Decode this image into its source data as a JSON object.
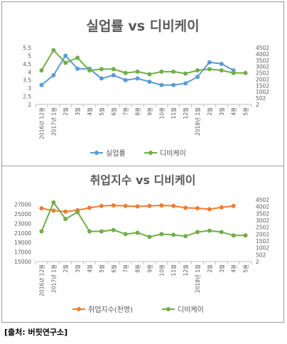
{
  "chart_data": [
    {
      "type": "line",
      "title": "실업률 vs 디비케이",
      "categories": [
        "2016년 12월",
        "2017년 1월",
        "2월",
        "3월",
        "4월",
        "5월",
        "6월",
        "7월",
        "8월",
        "9월",
        "10월",
        "11월",
        "12월",
        "2018년 1월",
        "2월",
        "3월",
        "4월",
        "5월"
      ],
      "y_ticks": [
        "2",
        "2.5",
        "3",
        "3.5",
        "4",
        "4.5",
        "5",
        "5.5"
      ],
      "ylim": [
        2,
        5.5
      ],
      "y2_ticks": [
        "2",
        "502",
        "1002",
        "1502",
        "2002",
        "2502",
        "3002",
        "3502",
        "4002",
        "4502"
      ],
      "y2lim": [
        2,
        4502
      ],
      "grid": false,
      "legend": "bottom",
      "series": [
        {
          "name": "실업률",
          "axis": "left",
          "color": "#5b9bd5",
          "values": [
            3.2,
            3.8,
            5.0,
            4.2,
            4.2,
            3.6,
            3.8,
            3.5,
            3.6,
            3.4,
            3.2,
            3.2,
            3.3,
            3.7,
            4.6,
            4.5,
            4.1,
            null
          ]
        },
        {
          "name": "디비케이",
          "axis": "right",
          "color": "#70ad47",
          "values": [
            2700,
            4300,
            3300,
            3700,
            2700,
            2800,
            2800,
            2500,
            2600,
            2400,
            2600,
            2600,
            2450,
            2700,
            2800,
            2700,
            2500,
            2500
          ]
        }
      ]
    },
    {
      "type": "line",
      "title": "취업지수 vs 디비케이",
      "categories": [
        "2016년 12월",
        "2017년 1월",
        "2월",
        "3월",
        "4월",
        "5월",
        "6월",
        "7월",
        "8월",
        "9월",
        "10월",
        "11월",
        "12월",
        "2018년 1월",
        "2월",
        "3월",
        "4월",
        "5월"
      ],
      "y_ticks": [
        "15000",
        "17000",
        "19000",
        "21000",
        "23000",
        "25000",
        "27000"
      ],
      "ylim": [
        15000,
        28000
      ],
      "y2_ticks": [
        "2",
        "502",
        "1002",
        "1502",
        "2002",
        "2502",
        "3002",
        "3502",
        "4002",
        "4502"
      ],
      "y2lim": [
        2,
        4502
      ],
      "grid": false,
      "legend": "bottom",
      "series": [
        {
          "name": "취업지수(천명)",
          "axis": "left",
          "color": "#ed7d31",
          "values": [
            26200,
            25700,
            25500,
            25800,
            26300,
            26700,
            26800,
            26700,
            26600,
            26700,
            26800,
            26700,
            26300,
            26200,
            26000,
            26400,
            26700,
            null
          ]
        },
        {
          "name": "디비케이",
          "axis": "right",
          "color": "#70ad47",
          "values": [
            2200,
            4300,
            3100,
            3600,
            2200,
            2200,
            2300,
            2000,
            2100,
            1800,
            2000,
            1950,
            1850,
            2150,
            2250,
            2150,
            1900,
            1900
          ]
        }
      ]
    }
  ],
  "source": "[출처: 버핏연구소]"
}
